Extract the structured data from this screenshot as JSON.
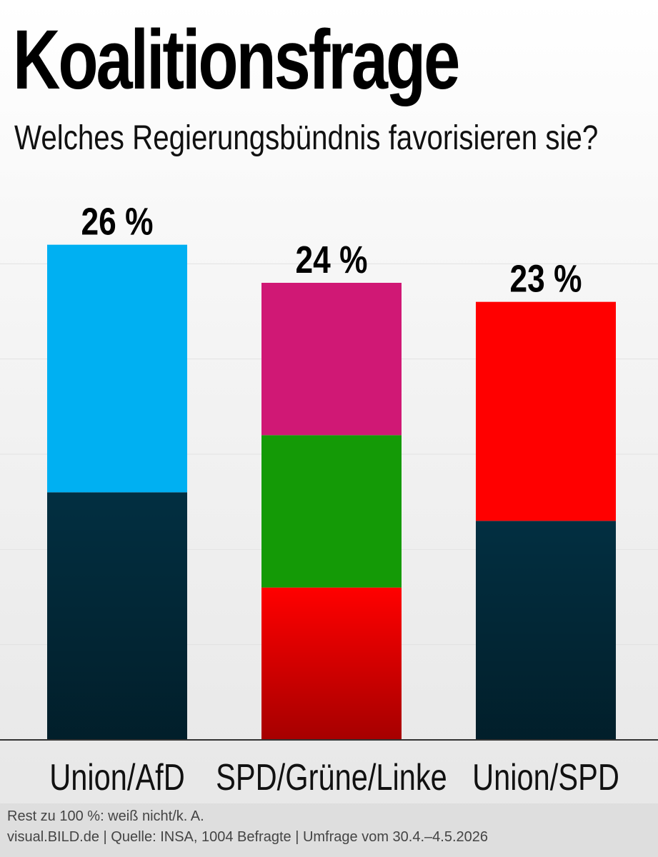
{
  "title": "Koalitionsfrage",
  "subtitle": "Welches Regierungsbündnis favorisieren sie?",
  "chart_data": {
    "type": "bar",
    "stacked": true,
    "title": "Koalitionsfrage",
    "subtitle": "Welches Regierungsbündnis favorisieren sie?",
    "categories": [
      "Union/AfD",
      "SPD/Grüne/Linke",
      "Union/SPD"
    ],
    "totals": [
      26,
      24,
      23
    ],
    "total_labels": [
      "26 %",
      "24 %",
      "23 %"
    ],
    "unit": "%",
    "ylim": [
      0,
      30
    ],
    "grid": true,
    "legend": "none",
    "stacks": [
      {
        "category": "Union/AfD",
        "segments": [
          {
            "value": 13,
            "color": "#022f41"
          },
          {
            "value": 13,
            "color": "#00b0f2"
          }
        ]
      },
      {
        "category": "SPD/Grüne/Linke",
        "segments": [
          {
            "value": 8,
            "color": "#ff0000"
          },
          {
            "value": 8,
            "color": "#149a06"
          },
          {
            "value": 8,
            "color": "#d01875"
          }
        ]
      },
      {
        "category": "Union/SPD",
        "segments": [
          {
            "value": 11.5,
            "color": "#022f41"
          },
          {
            "value": 11.5,
            "color": "#ff0000"
          }
        ]
      }
    ]
  },
  "footer": {
    "note": "Rest zu 100 %: weiß nicht/k. A.",
    "source": "visual.BILD.de | Quelle: INSA, 1004 Befragte | Umfrage vom 30.4.–4.5.2026"
  }
}
